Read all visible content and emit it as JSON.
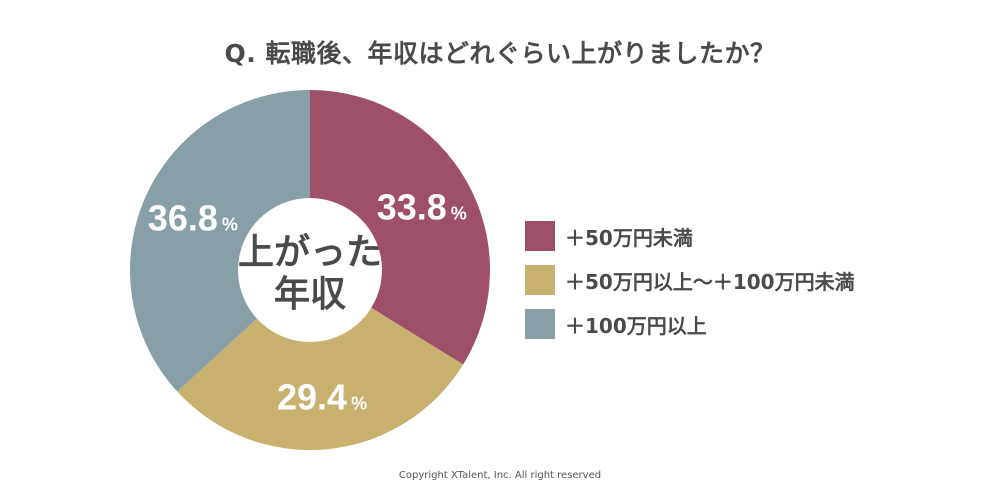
{
  "chart_data": {
    "type": "pie",
    "title": "Q. 転職後、年収はどれぐらい上がりましたか？",
    "center_label": [
      "上がった",
      "年収"
    ],
    "unit": "%",
    "slices": [
      {
        "label": "＋50万円未満",
        "value": 33.8,
        "value_text": "33.8",
        "color": "#9e5068"
      },
      {
        "label": "＋50万円以上〜＋100万円未満",
        "value": 29.4,
        "value_text": "29.4",
        "color": "#c8b06f"
      },
      {
        "label": "＋100万円以上",
        "value": 36.8,
        "value_text": "36.8",
        "color": "#889fa8"
      }
    ]
  },
  "copyright": "Copyright XTalent, Inc. All right reserved"
}
